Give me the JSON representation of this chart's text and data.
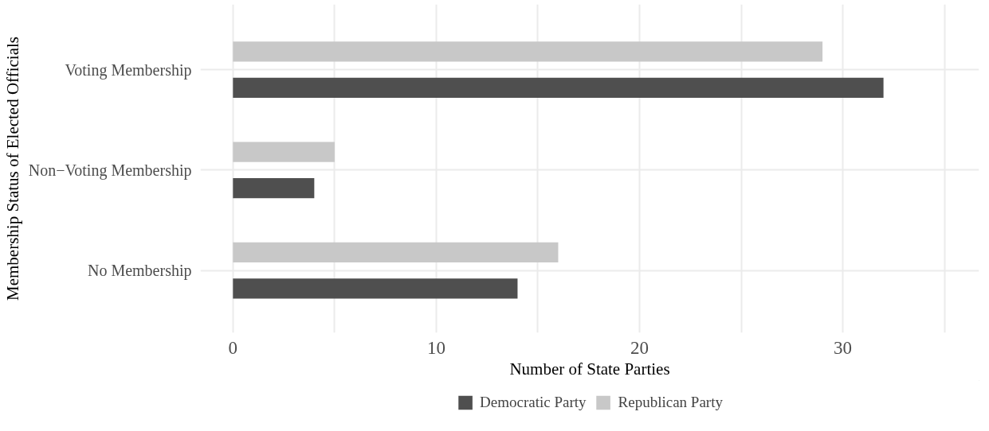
{
  "chart_data": {
    "type": "bar",
    "orientation": "horizontal",
    "xlabel": "Number of State Parties",
    "ylabel": "Membership Status of Elected Officials",
    "categories": [
      "Voting Membership",
      "Non−Voting Membership",
      "No Membership"
    ],
    "series": [
      {
        "name": "Democratic Party",
        "color": "#4f4f4f",
        "values": [
          32,
          4,
          14
        ]
      },
      {
        "name": "Republican Party",
        "color": "#c8c8c8",
        "values": [
          29,
          5,
          16
        ]
      }
    ],
    "xlim": [
      -1.6,
      36.7
    ],
    "xticks": [
      0,
      {
        "value": 5,
        "label": null
      },
      10,
      {
        "value": 15,
        "label": null
      },
      20,
      {
        "value": 25,
        "label": null
      },
      30,
      {
        "value": 35,
        "label": null
      }
    ],
    "grid": true,
    "legend": "bottom"
  }
}
